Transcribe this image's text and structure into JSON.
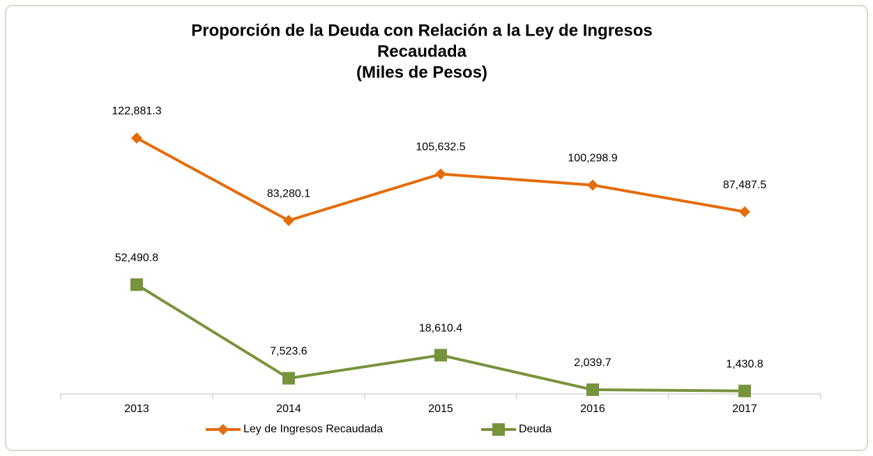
{
  "chart_data": {
    "type": "line",
    "title": [
      "Proporción de la Deuda con Relación a la Ley de  Ingresos",
      "Recaudada",
      "(Miles de Pesos)"
    ],
    "categories": [
      "2013",
      "2014",
      "2015",
      "2016",
      "2017"
    ],
    "series": [
      {
        "name": "Ley de Ingresos Recaudada",
        "color": "#E46C0A",
        "marker": "diamond",
        "values": [
          122881.3,
          83280.1,
          105632.5,
          100298.9,
          87487.5
        ],
        "value_labels": [
          "122,881.3",
          "83,280.1",
          "105,632.5",
          "100,298.9",
          "87,487.5"
        ]
      },
      {
        "name": "Deuda",
        "color": "#77933C",
        "marker": "square",
        "values": [
          52490.8,
          7523.6,
          18610.4,
          2039.7,
          1430.8
        ],
        "value_labels": [
          "52,490.8",
          "7,523.6",
          "18,610.4",
          "2,039.7",
          "1,430.8"
        ]
      }
    ],
    "legend": "bottom"
  }
}
